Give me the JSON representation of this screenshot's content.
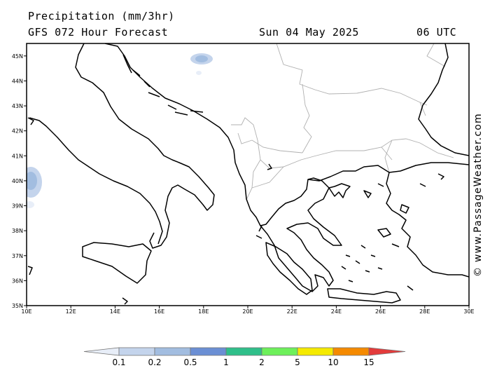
{
  "header": {
    "title": "Precipitation (mm/3hr)",
    "subtitle": "GFS 072 Hour Forecast",
    "date": "Sun 04 May 2025",
    "time": "06 UTC"
  },
  "copyright": "© www.PassageWeather.com",
  "map": {
    "lon_range": [
      10,
      30
    ],
    "lat_range": [
      35,
      45.5
    ],
    "x_ticks": [
      "10E",
      "12E",
      "14E",
      "16E",
      "18E",
      "20E",
      "22E",
      "24E",
      "26E",
      "28E",
      "30E"
    ],
    "y_ticks": [
      "45N",
      "44N",
      "43N",
      "42N",
      "41N",
      "40N",
      "39N",
      "38N",
      "37N",
      "36N",
      "35N"
    ],
    "coast_color": "#000000",
    "border_color": "#b0b0b0",
    "precip_areas": [
      {
        "lon": 17.9,
        "lat": 45.0,
        "level": 0.5
      },
      {
        "lon": 10.2,
        "lat": 40.3,
        "level": 0.5
      },
      {
        "lon": 10.1,
        "lat": 39.6,
        "level": 0.1
      }
    ]
  },
  "legend": {
    "labels": [
      "0.1",
      "0.2",
      "0.5",
      "1",
      "2",
      "5",
      "10",
      "15"
    ],
    "colors": [
      "#e8eef8",
      "#c4d4ec",
      "#a2bde0",
      "#6b8fd4",
      "#2fbf8a",
      "#6df05a",
      "#f5ea00",
      "#f58a00",
      "#e33b3b"
    ]
  }
}
